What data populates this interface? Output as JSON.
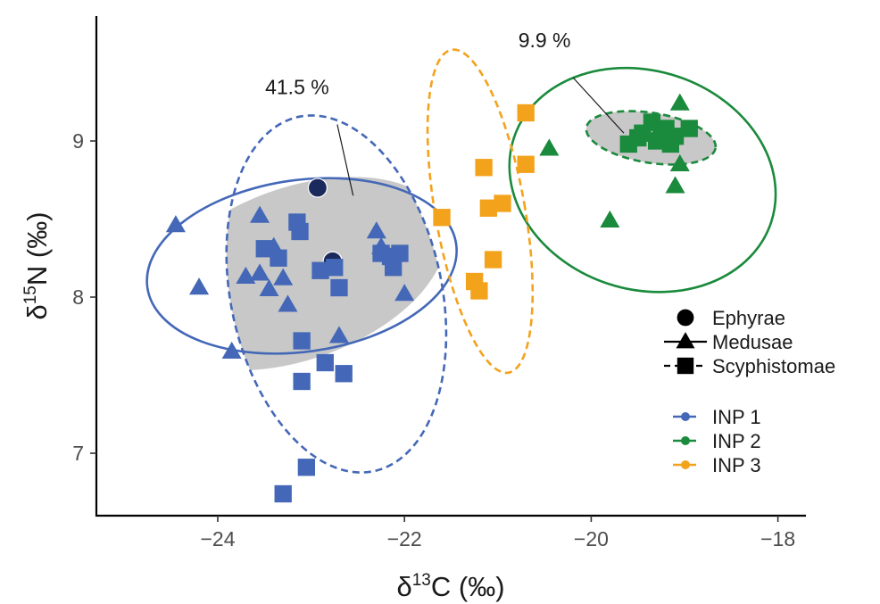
{
  "chart_data": {
    "type": "scatter",
    "xlabel": {
      "prefix": "δ",
      "sup": "13",
      "main": "C (‰)"
    },
    "ylabel": {
      "prefix": "δ",
      "sup": "15",
      "main": "N (‰)"
    },
    "xlim": [
      -25.3,
      -17.7
    ],
    "ylim": [
      6.6,
      9.8
    ],
    "x_ticks": [
      -24,
      -22,
      -20,
      -18
    ],
    "x_tick_labels": [
      "−24",
      "−22",
      "−20",
      "−18"
    ],
    "y_ticks": [
      7,
      8,
      9
    ],
    "y_tick_labels": [
      "7",
      "8",
      "9"
    ],
    "grid": false,
    "colors": {
      "INP 1": "#4468b7",
      "INP 2": "#1a8a3c",
      "INP 3": "#f3a21c",
      "ephyrae_INP1": "#1b2a5c",
      "overlap_fill": "#c8c8c8"
    },
    "annotations": [
      {
        "text": "41.5 %",
        "x": -23.15,
        "y": 9.3,
        "point_x": -22.55,
        "point_y": 8.65
      },
      {
        "text": "9.9 %",
        "x": -20.5,
        "y": 9.6,
        "point_x": -19.65,
        "point_y": 9.05
      }
    ],
    "legend_shape": {
      "entries": [
        {
          "label": "Ephyrae",
          "shape": "circle",
          "line": "none"
        },
        {
          "label": "Medusae",
          "shape": "triangle",
          "line": "solid"
        },
        {
          "label": "Scyphistomae",
          "shape": "square",
          "line": "dashed"
        }
      ],
      "position": "right"
    },
    "legend_color": {
      "entries": [
        "INP 1",
        "INP 2",
        "INP 3"
      ],
      "position": "bottom-right"
    },
    "ellipses": [
      {
        "group": "INP 1",
        "stage": "Medusae",
        "cx": -23.1,
        "cy": 8.2,
        "rx": 1.67,
        "ry": 0.55,
        "angle_deg": -8,
        "dash": "solid"
      },
      {
        "group": "INP 1",
        "stage": "Scyphistomae",
        "cx": -22.73,
        "cy": 8.02,
        "rx": 1.13,
        "ry": 1.16,
        "angle_deg": -12,
        "dash": "dashed"
      },
      {
        "group": "INP 2",
        "stage": "Medusae",
        "cx": -19.45,
        "cy": 8.75,
        "rx": 1.45,
        "ry": 0.7,
        "angle_deg": 18,
        "dash": "solid"
      },
      {
        "group": "INP 2",
        "stage": "Scyphistomae",
        "cx": -19.36,
        "cy": 9.02,
        "rx": 0.7,
        "ry": 0.16,
        "angle_deg": 9,
        "dash": "dashed"
      },
      {
        "group": "INP 3",
        "stage": "Scyphistomae",
        "cx": -21.19,
        "cy": 8.55,
        "rx": 0.48,
        "ry": 1.05,
        "angle_deg": -10,
        "dash": "dashed"
      }
    ],
    "series": [
      {
        "group": "INP 1",
        "stage": "Ephyrae",
        "points": [
          [
            -22.93,
            8.7
          ],
          [
            -22.77,
            8.23
          ]
        ]
      },
      {
        "group": "INP 1",
        "stage": "Medusae",
        "points": [
          [
            -24.45,
            8.46
          ],
          [
            -24.2,
            8.06
          ],
          [
            -23.85,
            7.65
          ],
          [
            -23.7,
            8.13
          ],
          [
            -23.55,
            8.15
          ],
          [
            -23.55,
            8.52
          ],
          [
            -23.45,
            8.05
          ],
          [
            -23.4,
            8.32
          ],
          [
            -23.3,
            8.12
          ],
          [
            -23.25,
            7.95
          ],
          [
            -22.7,
            7.75
          ],
          [
            -22.3,
            8.42
          ],
          [
            -22.25,
            8.32
          ],
          [
            -22.0,
            8.02
          ]
        ]
      },
      {
        "group": "INP 1",
        "stage": "Scyphistomae",
        "points": [
          [
            -23.5,
            8.31
          ],
          [
            -23.35,
            8.25
          ],
          [
            -23.15,
            8.48
          ],
          [
            -23.12,
            8.42
          ],
          [
            -23.1,
            7.72
          ],
          [
            -23.1,
            7.46
          ],
          [
            -23.05,
            6.91
          ],
          [
            -23.3,
            6.74
          ],
          [
            -22.9,
            8.17
          ],
          [
            -22.85,
            7.58
          ],
          [
            -22.75,
            8.19
          ],
          [
            -22.7,
            8.06
          ],
          [
            -22.65,
            7.51
          ],
          [
            -22.25,
            8.28
          ],
          [
            -22.15,
            8.26
          ],
          [
            -22.12,
            8.19
          ],
          [
            -22.05,
            8.28
          ]
        ]
      },
      {
        "group": "INP 2",
        "stage": "Medusae",
        "points": [
          [
            -20.45,
            8.95
          ],
          [
            -19.8,
            8.49
          ],
          [
            -19.1,
            8.71
          ],
          [
            -19.05,
            8.85
          ],
          [
            -19.05,
            9.24
          ]
        ]
      },
      {
        "group": "INP 2",
        "stage": "Scyphistomae",
        "points": [
          [
            -19.6,
            8.98
          ],
          [
            -19.5,
            9.02
          ],
          [
            -19.45,
            9.05
          ],
          [
            -19.35,
            9.12
          ],
          [
            -19.3,
            9.0
          ],
          [
            -19.25,
            9.06
          ],
          [
            -19.2,
            9.08
          ],
          [
            -19.15,
            8.98
          ],
          [
            -19.1,
            9.03
          ],
          [
            -18.95,
            9.08
          ]
        ]
      },
      {
        "group": "INP 3",
        "stage": "Scyphistomae",
        "points": [
          [
            -21.6,
            8.51
          ],
          [
            -21.25,
            8.1
          ],
          [
            -21.2,
            8.04
          ],
          [
            -21.15,
            8.83
          ],
          [
            -21.1,
            8.57
          ],
          [
            -21.05,
            8.24
          ],
          [
            -20.95,
            8.6
          ],
          [
            -20.7,
            9.18
          ],
          [
            -20.7,
            8.85
          ]
        ]
      }
    ]
  }
}
